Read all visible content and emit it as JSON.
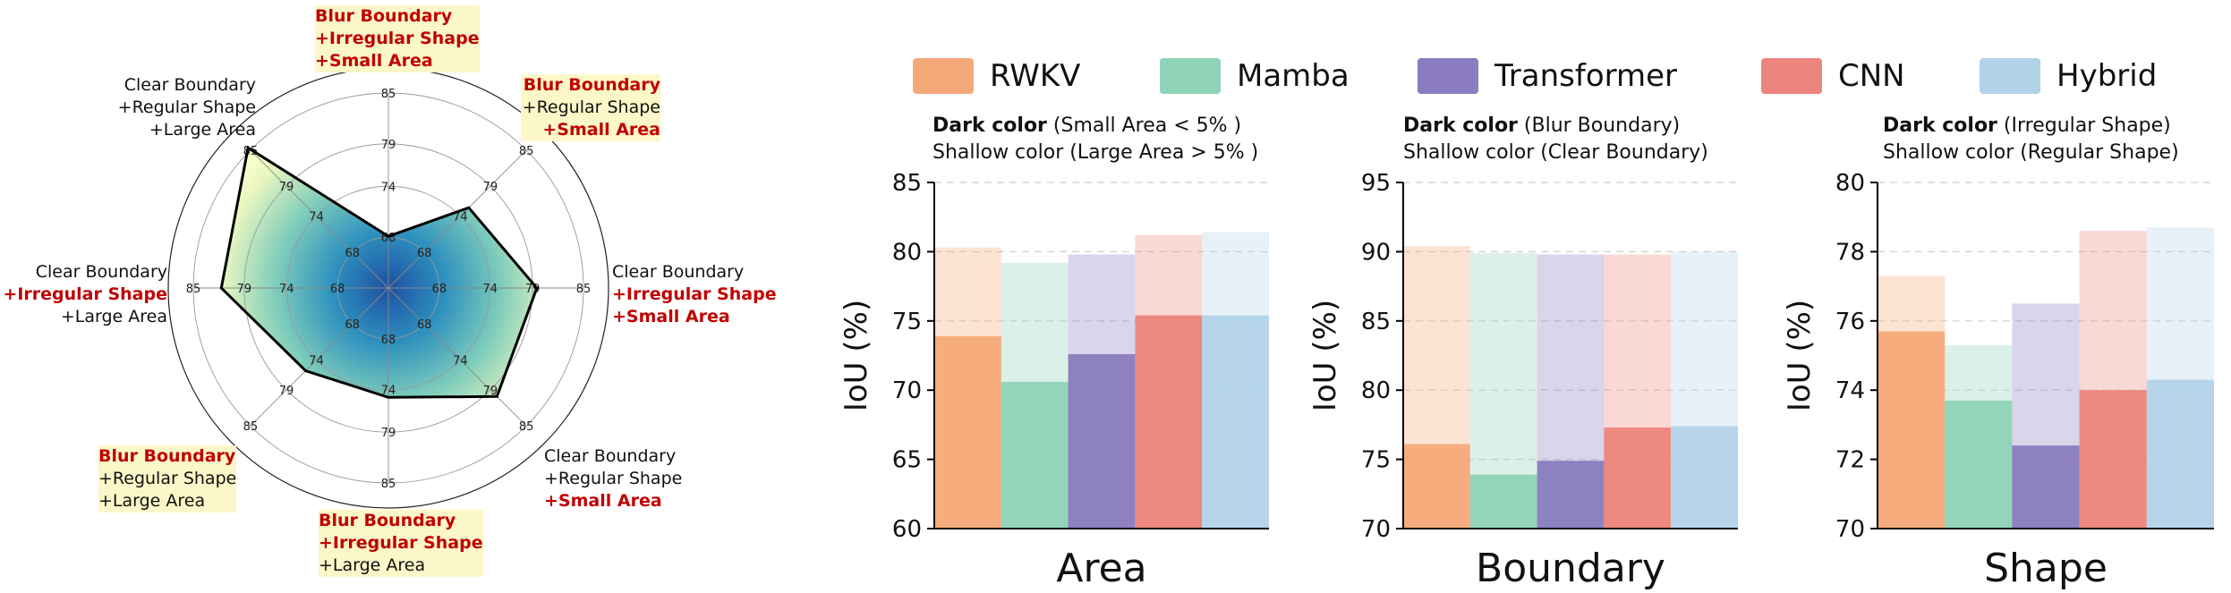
{
  "radar": {
    "rings": [
      68,
      74,
      79,
      85
    ],
    "fill_colors": [
      "#1f4fa2",
      "#2c8fbe",
      "#7fcdbb",
      "#e8f6c0",
      "#ffffcc"
    ],
    "outline_color": "#000000",
    "axes": [
      {
        "lines": [
          {
            "text": "Blur Boundary",
            "style": "red"
          },
          {
            "text": "+Irregular Shape",
            "style": "red"
          },
          {
            "text": "+Small Area",
            "style": "red"
          }
        ],
        "highlight": true,
        "value": 68.1
      },
      {
        "lines": [
          {
            "text": "Blur Boundary",
            "style": "red"
          },
          {
            "text": "+Regular Shape",
            "style": "black"
          },
          {
            "text": "+Small Area",
            "style": "red"
          }
        ],
        "highlight": true,
        "value": 75.4
      },
      {
        "lines": [
          {
            "text": "Clear Boundary",
            "style": "black"
          },
          {
            "text": "+Irregular Shape",
            "style": "red"
          },
          {
            "text": "+Small Area",
            "style": "red"
          }
        ],
        "highlight": false,
        "value": 79.5
      },
      {
        "lines": [
          {
            "text": "Clear Boundary",
            "style": "black"
          },
          {
            "text": "+Regular Shape",
            "style": "black"
          },
          {
            "text": "+Small Area",
            "style": "red"
          }
        ],
        "highlight": false,
        "value": 80.1
      },
      {
        "lines": [
          {
            "text": "Blur Boundary",
            "style": "red"
          },
          {
            "text": "+Irregular Shape",
            "style": "red"
          },
          {
            "text": "+Large Area",
            "style": "black"
          }
        ],
        "highlight": true,
        "value": 74.9
      },
      {
        "lines": [
          {
            "text": "Blur Boundary",
            "style": "red"
          },
          {
            "text": "+Regular Shape",
            "style": "black"
          },
          {
            "text": "+Large Area",
            "style": "black"
          }
        ],
        "highlight": true,
        "value": 75.8
      },
      {
        "lines": [
          {
            "text": "Clear Boundary",
            "style": "black"
          },
          {
            "text": "+Irregular Shape",
            "style": "red"
          },
          {
            "text": "+Large Area",
            "style": "black"
          }
        ],
        "highlight": false,
        "value": 81.7
      },
      {
        "lines": [
          {
            "text": "Clear Boundary",
            "style": "black"
          },
          {
            "text": "+Regular Shape",
            "style": "black"
          },
          {
            "text": "+Large Area",
            "style": "black"
          }
        ],
        "highlight": false,
        "value": 85.4
      }
    ]
  },
  "legend": [
    {
      "label": "RWKV",
      "color": "#f5a978"
    },
    {
      "label": "Mamba",
      "color": "#8fd3b8"
    },
    {
      "label": "Transformer",
      "color": "#8a7cbf"
    },
    {
      "label": "CNN",
      "color": "#ec857b"
    },
    {
      "label": "Hybrid",
      "color": "#b3d3e9"
    }
  ],
  "chart_data": [
    {
      "type": "bar",
      "title": "Area",
      "xlabel": "Area",
      "ylabel": "IoU (%)",
      "note_dark_bold": "Dark color",
      "note_dark_rest": " (Small Area < 5% )",
      "note_shallow": "Shallow color (Large Area > 5% )",
      "ylim": [
        60,
        85
      ],
      "yticks": [
        "60",
        "65",
        "70",
        "75",
        "80",
        "85"
      ],
      "grid": true,
      "categories": [
        "RWKV",
        "Mamba",
        "Transformer",
        "CNN",
        "Hybrid"
      ],
      "series": [
        {
          "name": "Dark color",
          "values": [
            73.9,
            70.6,
            72.6,
            75.4,
            75.4
          ]
        },
        {
          "name": "Shallow color",
          "values": [
            80.3,
            79.2,
            79.8,
            81.2,
            81.4
          ]
        }
      ]
    },
    {
      "type": "bar",
      "title": "Boundary",
      "xlabel": "Boundary",
      "ylabel": "IoU (%)",
      "note_dark_bold": "Dark color",
      "note_dark_rest": " (Blur Boundary)",
      "note_shallow": "Shallow color (Clear Boundary)",
      "ylim": [
        70,
        95
      ],
      "yticks": [
        "70",
        "75",
        "80",
        "85",
        "90",
        "95"
      ],
      "grid": true,
      "categories": [
        "RWKV",
        "Mamba",
        "Transformer",
        "CNN",
        "Hybrid"
      ],
      "series": [
        {
          "name": "Dark color",
          "values": [
            76.1,
            73.9,
            74.9,
            77.3,
            77.4
          ]
        },
        {
          "name": "Shallow color",
          "values": [
            90.4,
            89.9,
            89.8,
            89.8,
            90.0
          ]
        }
      ]
    },
    {
      "type": "bar",
      "title": "Shape",
      "xlabel": "Shape",
      "ylabel": "IoU (%)",
      "note_dark_bold": "Dark color",
      "note_dark_rest": " (Irregular Shape)",
      "note_shallow": "Shallow color (Regular Shape)",
      "ylim": [
        70,
        80
      ],
      "yticks": [
        "70",
        "72",
        "74",
        "76",
        "78",
        "80"
      ],
      "grid": true,
      "categories": [
        "RWKV",
        "Mamba",
        "Transformer",
        "CNN",
        "Hybrid"
      ],
      "series": [
        {
          "name": "Dark color",
          "values": [
            75.7,
            73.7,
            72.4,
            74.0,
            74.3
          ]
        },
        {
          "name": "Shallow color",
          "values": [
            77.3,
            75.3,
            76.5,
            78.6,
            78.7
          ]
        }
      ]
    }
  ]
}
